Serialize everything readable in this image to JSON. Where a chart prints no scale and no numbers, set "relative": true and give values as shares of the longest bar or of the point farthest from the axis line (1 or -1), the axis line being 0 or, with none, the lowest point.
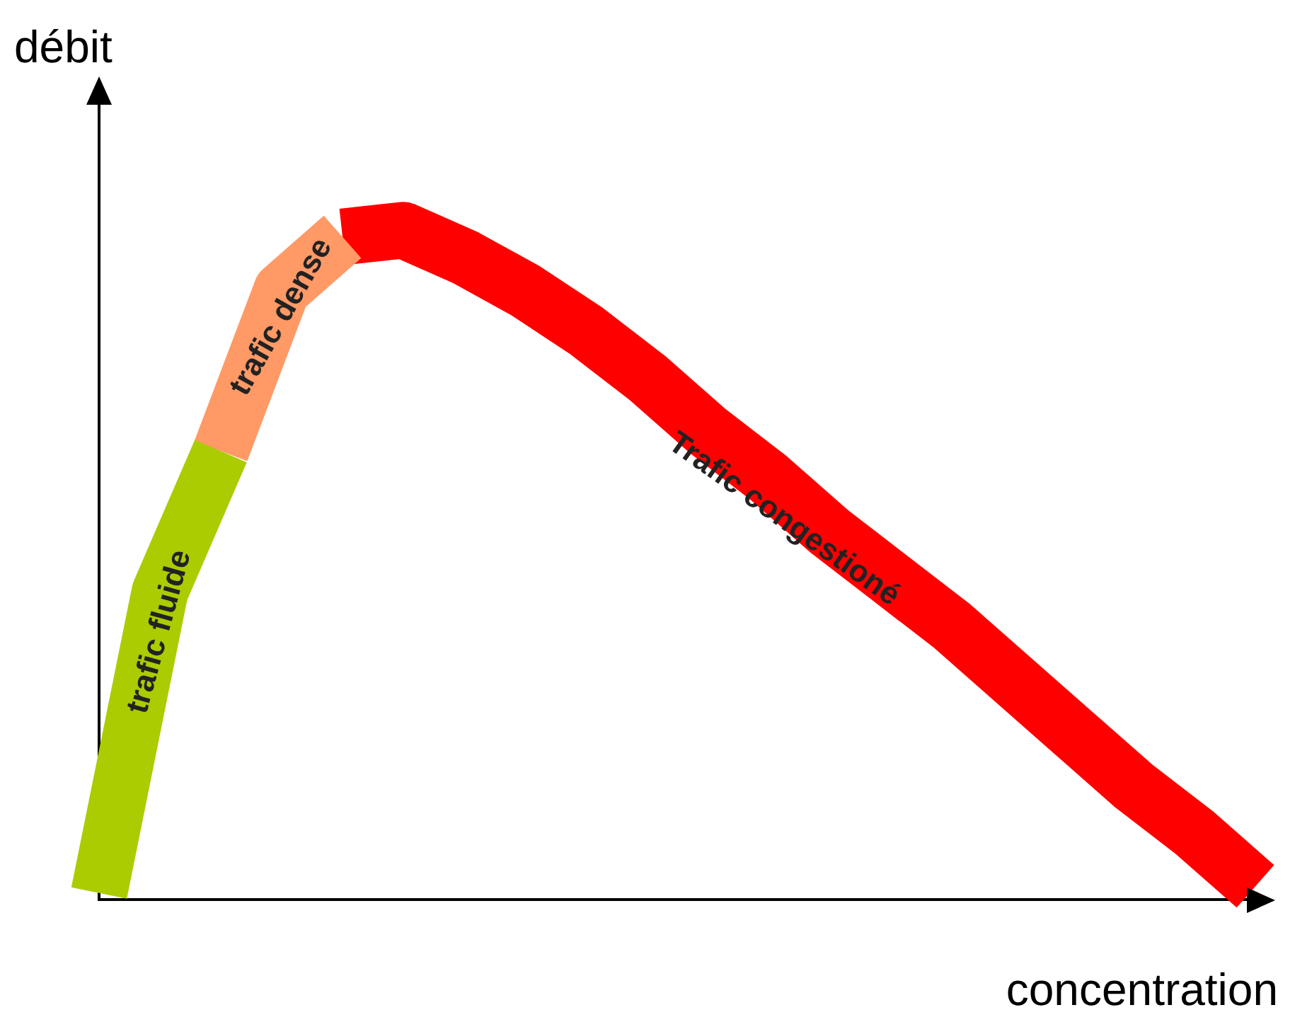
{
  "chart_data": {
    "type": "line",
    "relative": true,
    "xlabel": "concentration",
    "ylabel": "débit",
    "legend": false,
    "marker": "none",
    "line_style": "solid",
    "categories": [
      null,
      null,
      null,
      null,
      null,
      null,
      null,
      null,
      null,
      null,
      null,
      null,
      null,
      null,
      null,
      null,
      null,
      null,
      null,
      null
    ],
    "series": [
      {
        "name": "trafic fluide",
        "color": "#aacc00",
        "values": [
          0.01,
          0.46,
          0.67,
          null,
          null,
          null,
          null,
          null,
          null,
          null,
          null,
          null,
          null,
          null,
          null,
          null,
          null,
          null,
          null,
          null
        ]
      },
      {
        "name": "trafic dense",
        "color": "#ff9966",
        "values": [
          null,
          null,
          0.67,
          0.91,
          0.99,
          null,
          null,
          null,
          null,
          null,
          null,
          null,
          null,
          null,
          null,
          null,
          null,
          null,
          null,
          null
        ]
      },
      {
        "name": "Trafic congestioné",
        "color": "#ff0000",
        "values": [
          null,
          null,
          null,
          null,
          0.99,
          1,
          0.96,
          0.91,
          0.85,
          0.78,
          0.7,
          0.63,
          0.55,
          0.48,
          0.41,
          0.33,
          0.25,
          0.17,
          0.1,
          0.02
        ]
      }
    ]
  }
}
